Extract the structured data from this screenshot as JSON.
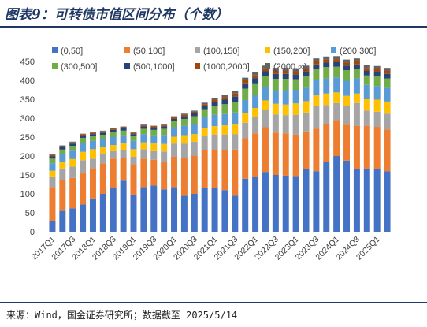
{
  "header": {
    "title": "图表9：可转债市值区间分布（个数）"
  },
  "footer": {
    "source": "来源：Wind，国金证券研究所；数据截至 2025/5/14"
  },
  "chart_data": {
    "type": "bar",
    "stacked": true,
    "title": "",
    "xlabel": "",
    "ylabel": "",
    "ylim": [
      0,
      450
    ],
    "yticks": [
      0,
      50,
      100,
      150,
      200,
      250,
      300,
      350,
      400,
      450
    ],
    "grid": false,
    "legend_position": "top",
    "categories": [
      "2017Q1",
      "2017Q2",
      "2017Q3",
      "2017Q4",
      "2018Q1",
      "2018Q2",
      "2018Q3",
      "2018Q4",
      "2019Q1",
      "2019Q2",
      "2019Q3",
      "2019Q4",
      "2020Q1",
      "2020Q2",
      "2020Q3",
      "2020Q4",
      "2021Q1",
      "2021Q2",
      "2021Q3",
      "2021Q4",
      "2022Q1",
      "2022Q2",
      "2022Q3",
      "2022Q4",
      "2023Q1",
      "2023Q2",
      "2023Q3",
      "2023Q4",
      "2024Q1",
      "2024Q2",
      "2024Q3",
      "2024Q4",
      "2025Q1",
      "2025Q2"
    ],
    "tick_labels": [
      "2017Q1",
      "2017Q3",
      "2018Q1",
      "2018Q3",
      "2019Q1",
      "2019Q3",
      "2020Q1",
      "2020Q3",
      "2021Q1",
      "2021Q3",
      "2022Q1",
      "2022Q3",
      "2023Q1",
      "2023Q3",
      "2024Q1",
      "2024Q3",
      "2025Q1"
    ],
    "series": [
      {
        "name": "(0,50]",
        "color": "#4472c4",
        "values": [
          28,
          55,
          62,
          72,
          88,
          100,
          115,
          135,
          98,
          118,
          122,
          112,
          118,
          95,
          100,
          115,
          115,
          110,
          95,
          140,
          145,
          158,
          150,
          148,
          147,
          165,
          160,
          185,
          200,
          188,
          165,
          165,
          165,
          160
        ]
      },
      {
        "name": "(50,100]",
        "color": "#ed7d31",
        "values": [
          90,
          82,
          80,
          82,
          80,
          80,
          78,
          60,
          80,
          75,
          68,
          72,
          80,
          100,
          100,
          100,
          100,
          105,
          122,
          107,
          115,
          118,
          112,
          112,
          110,
          100,
          112,
          100,
          95,
          95,
          115,
          115,
          112,
          110
        ]
      },
      {
        "name": "(100,150]",
        "color": "#a5a5a5",
        "values": [
          28,
          30,
          30,
          35,
          25,
          27,
          20,
          20,
          20,
          25,
          23,
          28,
          35,
          38,
          38,
          37,
          42,
          42,
          41,
          41,
          43,
          45,
          48,
          48,
          52,
          50,
          60,
          50,
          45,
          50,
          60,
          40,
          40,
          42
        ]
      },
      {
        "name": "(150,200]",
        "color": "#ffc000",
        "values": [
          15,
          18,
          20,
          22,
          25,
          17,
          16,
          18,
          20,
          18,
          20,
          20,
          18,
          22,
          20,
          22,
          22,
          24,
          25,
          26,
          24,
          26,
          28,
          28,
          30,
          30,
          28,
          30,
          28,
          26,
          25,
          30,
          32,
          32
        ]
      },
      {
        "name": "(200,300]",
        "color": "#5b9bd5",
        "values": [
          20,
          20,
          22,
          24,
          22,
          20,
          22,
          22,
          22,
          22,
          22,
          24,
          25,
          25,
          27,
          28,
          30,
          30,
          32,
          34,
          35,
          36,
          36,
          38,
          36,
          35,
          40,
          40,
          40,
          40,
          40,
          38,
          36,
          36
        ]
      },
      {
        "name": "(300,500]",
        "color": "#70ad47",
        "values": [
          12,
          12,
          13,
          13,
          12,
          12,
          12,
          12,
          12,
          14,
          14,
          16,
          16,
          18,
          20,
          22,
          24,
          26,
          28,
          30,
          30,
          28,
          30,
          30,
          28,
          30,
          30,
          30,
          28,
          28,
          25,
          25,
          25,
          25
        ]
      },
      {
        "name": "(500,1000]",
        "color": "#264478",
        "values": [
          6,
          6,
          6,
          6,
          6,
          6,
          6,
          6,
          6,
          6,
          6,
          6,
          6,
          7,
          8,
          9,
          10,
          12,
          14,
          14,
          14,
          13,
          13,
          13,
          13,
          13,
          12,
          12,
          12,
          12,
          12,
          12,
          12,
          12
        ]
      },
      {
        "name": "(1000,2000]",
        "color": "#9e480e",
        "values": [
          3,
          3,
          3,
          3,
          3,
          3,
          3,
          3,
          3,
          3,
          3,
          3,
          4,
          4,
          4,
          4,
          6,
          7,
          8,
          8,
          8,
          8,
          8,
          8,
          8,
          8,
          8,
          8,
          8,
          8,
          8,
          8,
          8,
          8
        ]
      },
      {
        "name": "(2000,∞)",
        "color": "#636363",
        "values": [
          2,
          2,
          2,
          2,
          2,
          2,
          2,
          2,
          2,
          2,
          2,
          2,
          3,
          3,
          3,
          4,
          5,
          6,
          7,
          7,
          7,
          7,
          8,
          8,
          8,
          8,
          8,
          8,
          8,
          8,
          8,
          8,
          8,
          8
        ]
      }
    ]
  }
}
